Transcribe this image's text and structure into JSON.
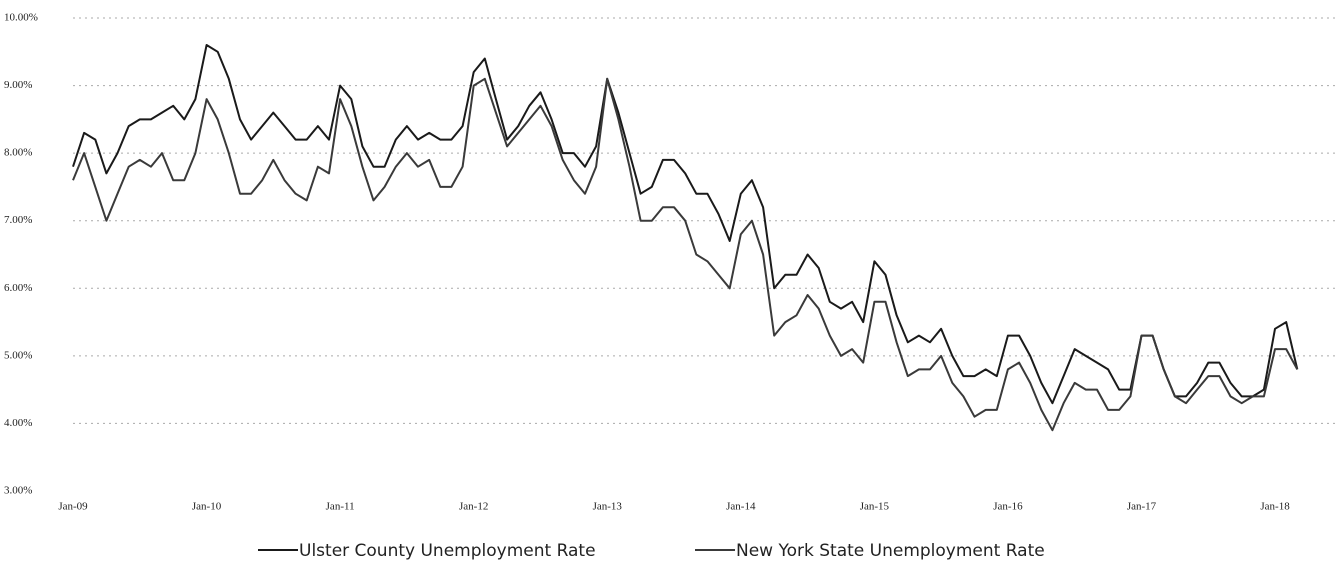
{
  "chart_data": {
    "type": "line",
    "categories": [
      "Jan-09",
      null,
      null,
      null,
      null,
      null,
      null,
      null,
      null,
      null,
      null,
      null,
      "Jan-10",
      null,
      null,
      null,
      null,
      null,
      null,
      null,
      null,
      null,
      null,
      null,
      "Jan-11",
      null,
      null,
      null,
      null,
      null,
      null,
      null,
      null,
      null,
      null,
      null,
      "Jan-12",
      null,
      null,
      null,
      null,
      null,
      null,
      null,
      null,
      null,
      null,
      null,
      "Jan-13",
      null,
      null,
      null,
      null,
      null,
      null,
      null,
      null,
      null,
      null,
      null,
      "Jan-14",
      null,
      null,
      null,
      null,
      null,
      null,
      null,
      null,
      null,
      null,
      null,
      "Jan-15",
      null,
      null,
      null,
      null,
      null,
      null,
      null,
      null,
      null,
      null,
      null,
      "Jan-16",
      null,
      null,
      null,
      null,
      null,
      null,
      null,
      null,
      null,
      null,
      null,
      "Jan-17",
      null,
      null,
      null,
      null,
      null,
      null,
      null,
      null,
      null,
      null,
      null,
      "Jan-18",
      null,
      null
    ],
    "series": [
      {
        "name": "Ulster County Unemployment Rate",
        "color": "#1a1a1a",
        "values": [
          7.8,
          8.3,
          8.2,
          7.7,
          8.0,
          8.4,
          8.5,
          8.5,
          8.6,
          8.7,
          8.5,
          8.8,
          9.6,
          9.5,
          9.1,
          8.5,
          8.2,
          8.4,
          8.6,
          8.4,
          8.2,
          8.2,
          8.4,
          8.2,
          9.0,
          8.8,
          8.1,
          7.8,
          7.8,
          8.2,
          8.4,
          8.2,
          8.3,
          8.2,
          8.2,
          8.4,
          9.2,
          9.4,
          8.8,
          8.2,
          8.4,
          8.7,
          8.9,
          8.5,
          8.0,
          8.0,
          7.8,
          8.1,
          9.1,
          8.6,
          8.0,
          7.4,
          7.5,
          7.9,
          7.9,
          7.7,
          7.4,
          7.4,
          7.1,
          6.7,
          7.4,
          7.6,
          7.2,
          6.0,
          6.2,
          6.2,
          6.5,
          6.3,
          5.8,
          5.7,
          5.8,
          5.5,
          6.4,
          6.2,
          5.6,
          5.2,
          5.3,
          5.2,
          5.4,
          5.0,
          4.7,
          4.7,
          4.8,
          4.7,
          5.3,
          5.3,
          5.0,
          4.6,
          4.3,
          4.7,
          5.1,
          5.0,
          4.9,
          4.8,
          4.5,
          4.5,
          5.3,
          5.3,
          4.8,
          4.4,
          4.4,
          4.6,
          4.9,
          4.9,
          4.6,
          4.4,
          4.4,
          4.5,
          5.4,
          5.5,
          4.8
        ]
      },
      {
        "name": "New York State Unemployment Rate",
        "color": "#3a3a3a",
        "values": [
          7.6,
          8.0,
          7.5,
          7.0,
          7.4,
          7.8,
          7.9,
          7.8,
          8.0,
          7.6,
          7.6,
          8.0,
          8.8,
          8.5,
          8.0,
          7.4,
          7.4,
          7.6,
          7.9,
          7.6,
          7.4,
          7.3,
          7.8,
          7.7,
          8.8,
          8.4,
          7.8,
          7.3,
          7.5,
          7.8,
          8.0,
          7.8,
          7.9,
          7.5,
          7.5,
          7.8,
          9.0,
          9.1,
          8.6,
          8.1,
          8.3,
          8.5,
          8.7,
          8.4,
          7.9,
          7.6,
          7.4,
          7.8,
          9.1,
          8.5,
          7.8,
          7.0,
          7.0,
          7.2,
          7.2,
          7.0,
          6.5,
          6.4,
          6.2,
          6.0,
          6.8,
          7.0,
          6.5,
          5.3,
          5.5,
          5.6,
          5.9,
          5.7,
          5.3,
          5.0,
          5.1,
          4.9,
          5.8,
          5.8,
          5.2,
          4.7,
          4.8,
          4.8,
          5.0,
          4.6,
          4.4,
          4.1,
          4.2,
          4.2,
          4.8,
          4.9,
          4.6,
          4.2,
          3.9,
          4.3,
          4.6,
          4.5,
          4.5,
          4.2,
          4.2,
          4.4,
          5.3,
          5.3,
          4.8,
          4.4,
          4.3,
          4.5,
          4.7,
          4.7,
          4.4,
          4.3,
          4.4,
          4.4,
          5.1,
          5.1,
          4.8
        ]
      }
    ],
    "ylim": [
      3,
      10
    ],
    "yticks": [
      {
        "value": 3,
        "label": "3.00%"
      },
      {
        "value": 4,
        "label": "4.00%"
      },
      {
        "value": 5,
        "label": "5.00%"
      },
      {
        "value": 6,
        "label": "6.00%"
      },
      {
        "value": 7,
        "label": "7.00%"
      },
      {
        "value": 8,
        "label": "8.00%"
      },
      {
        "value": 9,
        "label": "9.00%"
      },
      {
        "value": 10,
        "label": "10.00%"
      }
    ],
    "grid": true
  }
}
